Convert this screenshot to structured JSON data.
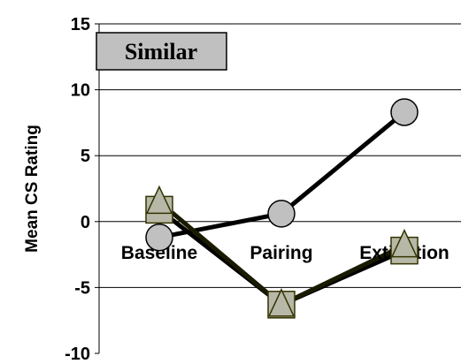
{
  "chart_data": {
    "type": "line",
    "title": "Similar",
    "ylabel": "Mean CS Rating",
    "xlabel": "",
    "categories": [
      "Baseline",
      "Pairing",
      "Extinction"
    ],
    "ylim": [
      -10,
      15
    ],
    "yticks": [
      -10,
      -5,
      0,
      5,
      10,
      15
    ],
    "grid": "horizontal",
    "series": [
      {
        "marker": "circle",
        "values": [
          -1.2,
          0.6,
          8.3
        ],
        "marker_color": "#c0c0c0",
        "line_color": "#000000"
      },
      {
        "marker": "square",
        "values": [
          0.9,
          -6.3,
          -2.2
        ],
        "marker_color": "#b8b8a8",
        "line_color": "#000000"
      },
      {
        "marker": "triangle",
        "values": [
          1.5,
          -6.3,
          -1.8
        ],
        "marker_color": "#b8b8a8",
        "line_color": "#1a1a00"
      }
    ]
  }
}
